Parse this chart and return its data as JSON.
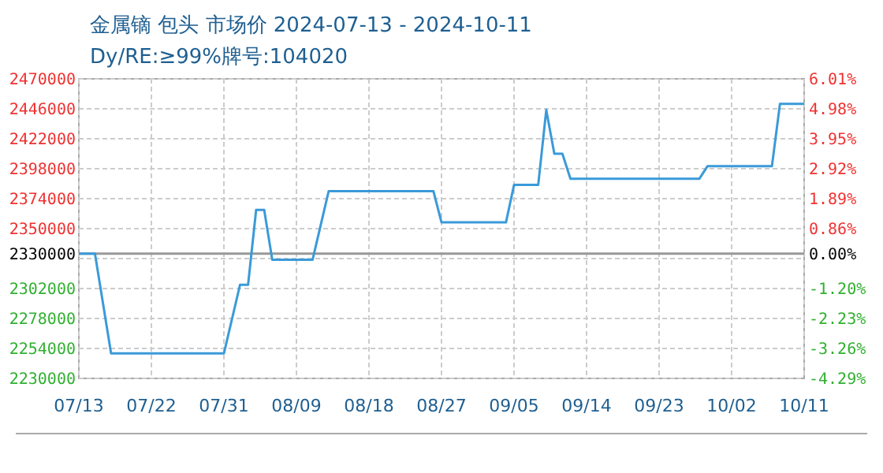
{
  "chart_data": {
    "type": "line",
    "title": "金属镝 包头 市场价 2024-07-13 - 2024-10-11",
    "subtitle": "Dy/RE:≥99%牌号:104020",
    "x": [
      "2024-07-13",
      "2024-07-15",
      "2024-07-17",
      "2024-07-31",
      "2024-08-02",
      "2024-08-03",
      "2024-08-04",
      "2024-08-05",
      "2024-08-06",
      "2024-08-11",
      "2024-08-13",
      "2024-08-26",
      "2024-08-27",
      "2024-09-04",
      "2024-09-05",
      "2024-09-08",
      "2024-09-09",
      "2024-09-10",
      "2024-09-11",
      "2024-09-12",
      "2024-09-28",
      "2024-09-29",
      "2024-10-07",
      "2024-10-08",
      "2024-10-11"
    ],
    "series": [
      {
        "color": "#3a9ad9",
        "values": [
          2330000,
          2330000,
          2250000,
          2250000,
          2305000,
          2305000,
          2365000,
          2365000,
          2325000,
          2325000,
          2380000,
          2380000,
          2355000,
          2355000,
          2385000,
          2385000,
          2445000,
          2410000,
          2410000,
          2390000,
          2390000,
          2400000,
          2400000,
          2450000,
          2450000
        ]
      }
    ],
    "xlim": [
      "2024-07-13",
      "2024-10-11"
    ],
    "xticks": [
      {
        "value": "2024-07-13",
        "label": "07/13"
      },
      {
        "value": "2024-07-22",
        "label": "07/22"
      },
      {
        "value": "2024-07-31",
        "label": "07/31"
      },
      {
        "value": "2024-08-09",
        "label": "08/09"
      },
      {
        "value": "2024-08-18",
        "label": "08/18"
      },
      {
        "value": "2024-08-27",
        "label": "08/27"
      },
      {
        "value": "2024-09-05",
        "label": "09/05"
      },
      {
        "value": "2024-09-14",
        "label": "09/14"
      },
      {
        "value": "2024-09-23",
        "label": "09/23"
      },
      {
        "value": "2024-10-02",
        "label": "10/02"
      },
      {
        "value": "2024-10-11",
        "label": "10/11"
      }
    ],
    "ylim": [
      2230000,
      2470000
    ],
    "yticks": [
      2230000,
      2254000,
      2278000,
      2302000,
      {
        "value": 2326000,
        "label": null
      },
      2330000,
      2350000,
      2374000,
      2398000,
      2422000,
      2446000,
      2470000
    ],
    "y2lim": [
      -4.29,
      6.01
    ],
    "y2ticks": [
      {
        "value": -4.29,
        "label": "-4.29%"
      },
      {
        "value": -3.26,
        "label": "-3.26%"
      },
      {
        "value": -2.23,
        "label": "-2.23%"
      },
      {
        "value": -1.2,
        "label": "-1.20%"
      },
      {
        "value": 0,
        "label": "0.00%"
      },
      {
        "value": 0.86,
        "label": "0.86%"
      },
      {
        "value": 1.89,
        "label": "1.89%"
      },
      {
        "value": 2.92,
        "label": "2.92%"
      },
      {
        "value": 3.95,
        "label": "3.95%"
      },
      {
        "value": 4.98,
        "label": "4.98%"
      },
      {
        "value": 6.01,
        "label": "6.01%"
      }
    ],
    "ref_lines": [
      {
        "axis": "y",
        "value": 2330000,
        "color": "#999999"
      }
    ],
    "grid": true,
    "marker": "none",
    "line_style": "solid"
  }
}
